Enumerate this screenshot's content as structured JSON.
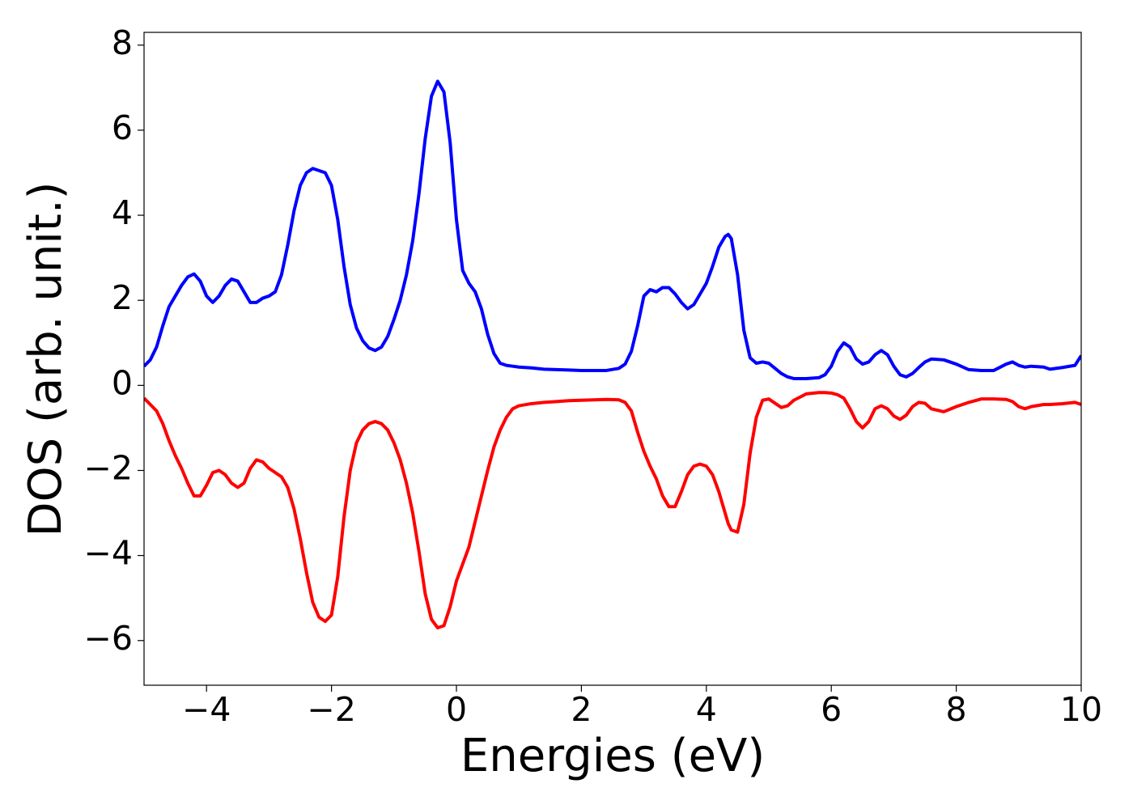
{
  "chart_data": {
    "type": "line",
    "x_label": "Energies (eV)",
    "y_label": "DOS (arb. unit.)",
    "xlim": [
      -5,
      10
    ],
    "ylim": [
      -7.05,
      8.3
    ],
    "xticks": [
      {
        "value": -4,
        "label": "−4"
      },
      {
        "value": -2,
        "label": "−2"
      },
      0,
      2,
      4,
      6,
      8,
      10
    ],
    "yticks": [
      {
        "value": -6,
        "label": "−6"
      },
      {
        "value": -4,
        "label": "−4"
      },
      {
        "value": -2,
        "label": "−2"
      },
      0,
      2,
      4,
      6,
      8
    ],
    "grid": false,
    "x": [
      -5,
      -4.9,
      -4.8,
      -4.7,
      -4.6,
      -4.5,
      -4.4,
      -4.3,
      -4.2,
      -4.1,
      -4.0,
      -3.9,
      -3.8,
      -3.7,
      -3.6,
      -3.5,
      -3.4,
      -3.3,
      -3.2,
      -3.1,
      -3.0,
      -2.9,
      -2.8,
      -2.7,
      -2.6,
      -2.5,
      -2.4,
      -2.3,
      -2.2,
      -2.1,
      -2.0,
      -1.9,
      -1.8,
      -1.7,
      -1.6,
      -1.5,
      -1.4,
      -1.3,
      -1.2,
      -1.1,
      -1.0,
      -0.9,
      -0.8,
      -0.7,
      -0.6,
      -0.5,
      -0.4,
      -0.3,
      -0.2,
      -0.1,
      0,
      0.1,
      0.2,
      0.3,
      0.4,
      0.5,
      0.6,
      0.7,
      0.8,
      0.9,
      1.0,
      1.2,
      1.4,
      1.6,
      1.8,
      2.0,
      2.2,
      2.4,
      2.6,
      2.7,
      2.8,
      2.9,
      3.0,
      3.1,
      3.2,
      3.3,
      3.4,
      3.5,
      3.6,
      3.7,
      3.8,
      3.9,
      4.0,
      4.1,
      4.2,
      4.3,
      4.35,
      4.4,
      4.5,
      4.6,
      4.7,
      4.8,
      4.9,
      5.0,
      5.1,
      5.2,
      5.3,
      5.4,
      5.6,
      5.8,
      5.9,
      6.0,
      6.1,
      6.2,
      6.3,
      6.4,
      6.5,
      6.6,
      6.7,
      6.8,
      6.9,
      7.0,
      7.1,
      7.2,
      7.3,
      7.4,
      7.5,
      7.6,
      7.8,
      8.0,
      8.2,
      8.4,
      8.6,
      8.8,
      8.9,
      9.0,
      9.1,
      9.2,
      9.4,
      9.5,
      9.7,
      9.9,
      10
    ],
    "series": [
      {
        "color": "#0000ff",
        "values": [
          0.45,
          0.6,
          0.9,
          1.4,
          1.85,
          2.1,
          2.35,
          2.55,
          2.62,
          2.45,
          2.1,
          1.95,
          2.1,
          2.35,
          2.5,
          2.45,
          2.2,
          1.95,
          1.95,
          2.05,
          2.1,
          2.2,
          2.6,
          3.3,
          4.1,
          4.7,
          5.0,
          5.1,
          5.05,
          5.0,
          4.7,
          3.9,
          2.8,
          1.9,
          1.35,
          1.05,
          0.88,
          0.82,
          0.9,
          1.15,
          1.55,
          2.0,
          2.6,
          3.4,
          4.5,
          5.8,
          6.8,
          7.15,
          6.9,
          5.7,
          3.9,
          2.7,
          2.4,
          2.2,
          1.8,
          1.2,
          0.75,
          0.52,
          0.47,
          0.45,
          0.43,
          0.41,
          0.38,
          0.37,
          0.36,
          0.35,
          0.35,
          0.35,
          0.4,
          0.5,
          0.8,
          1.4,
          2.1,
          2.25,
          2.2,
          2.3,
          2.3,
          2.15,
          1.95,
          1.8,
          1.9,
          2.15,
          2.4,
          2.8,
          3.25,
          3.5,
          3.55,
          3.45,
          2.6,
          1.3,
          0.65,
          0.52,
          0.55,
          0.52,
          0.4,
          0.28,
          0.2,
          0.16,
          0.16,
          0.18,
          0.25,
          0.45,
          0.8,
          1.0,
          0.9,
          0.62,
          0.5,
          0.55,
          0.72,
          0.82,
          0.72,
          0.45,
          0.25,
          0.2,
          0.28,
          0.42,
          0.55,
          0.62,
          0.6,
          0.5,
          0.37,
          0.35,
          0.35,
          0.5,
          0.55,
          0.47,
          0.43,
          0.45,
          0.43,
          0.38,
          0.42,
          0.47,
          0.7
        ]
      },
      {
        "color": "#ff0000",
        "values": [
          -0.3,
          -0.45,
          -0.6,
          -0.9,
          -1.3,
          -1.65,
          -1.95,
          -2.3,
          -2.6,
          -2.6,
          -2.35,
          -2.05,
          -2.0,
          -2.1,
          -2.3,
          -2.4,
          -2.3,
          -1.95,
          -1.75,
          -1.8,
          -1.95,
          -2.05,
          -2.15,
          -2.4,
          -2.9,
          -3.6,
          -4.4,
          -5.1,
          -5.45,
          -5.55,
          -5.4,
          -4.5,
          -3.1,
          -2.0,
          -1.35,
          -1.05,
          -0.9,
          -0.85,
          -0.9,
          -1.05,
          -1.35,
          -1.75,
          -2.3,
          -3.0,
          -3.9,
          -4.9,
          -5.5,
          -5.7,
          -5.65,
          -5.2,
          -4.6,
          -4.2,
          -3.8,
          -3.2,
          -2.6,
          -2.0,
          -1.45,
          -1.05,
          -0.75,
          -0.55,
          -0.48,
          -0.43,
          -0.4,
          -0.38,
          -0.36,
          -0.35,
          -0.34,
          -0.33,
          -0.34,
          -0.4,
          -0.6,
          -1.1,
          -1.55,
          -1.9,
          -2.2,
          -2.6,
          -2.85,
          -2.85,
          -2.5,
          -2.1,
          -1.9,
          -1.85,
          -1.9,
          -2.1,
          -2.5,
          -3.0,
          -3.25,
          -3.4,
          -3.45,
          -2.8,
          -1.6,
          -0.75,
          -0.35,
          -0.32,
          -0.42,
          -0.52,
          -0.48,
          -0.35,
          -0.2,
          -0.17,
          -0.17,
          -0.18,
          -0.22,
          -0.3,
          -0.55,
          -0.85,
          -1.0,
          -0.85,
          -0.55,
          -0.48,
          -0.55,
          -0.72,
          -0.8,
          -0.7,
          -0.5,
          -0.4,
          -0.42,
          -0.55,
          -0.62,
          -0.5,
          -0.4,
          -0.32,
          -0.32,
          -0.33,
          -0.38,
          -0.5,
          -0.55,
          -0.5,
          -0.45,
          -0.45,
          -0.43,
          -0.4,
          -0.45
        ]
      }
    ]
  }
}
